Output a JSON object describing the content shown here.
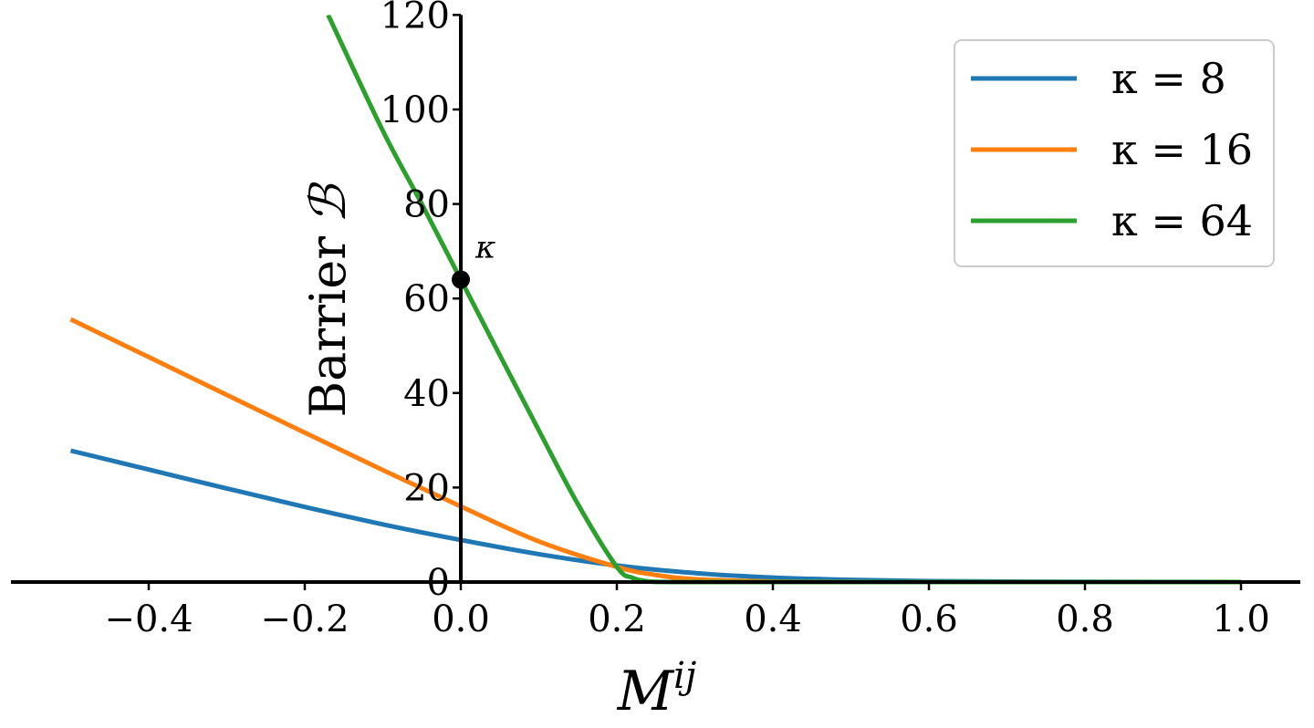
{
  "chart_data": {
    "type": "line",
    "xlabel_base": "M",
    "xlabel_sup": "ij",
    "ylabel": "Barrier",
    "ylabel_symbol": "ℬ",
    "xlim": [
      -0.5,
      1.0
    ],
    "ylim": [
      0,
      120
    ],
    "x_ticks": [
      {
        "value": -0.4,
        "label": "−0.4"
      },
      {
        "value": -0.2,
        "label": "−0.2"
      },
      {
        "value": 0.0,
        "label": "0.0"
      },
      {
        "value": 0.2,
        "label": "0.2"
      },
      {
        "value": 0.4,
        "label": "0.4"
      },
      {
        "value": 0.6,
        "label": "0.6"
      },
      {
        "value": 0.8,
        "label": "0.8"
      },
      {
        "value": 1.0,
        "label": "1.0"
      }
    ],
    "y_ticks": [
      {
        "value": 0,
        "label": "0"
      },
      {
        "value": 20,
        "label": "20"
      },
      {
        "value": 40,
        "label": "40"
      },
      {
        "value": 60,
        "label": "60"
      },
      {
        "value": 80,
        "label": "80"
      },
      {
        "value": 100,
        "label": "100"
      },
      {
        "value": 120,
        "label": "120"
      }
    ],
    "grid": false,
    "legend_position": "top-right",
    "series": [
      {
        "name": "κ = 8",
        "color": "#1f77b4",
        "x": [
          -0.5,
          -0.4,
          -0.3,
          -0.2,
          -0.1,
          0.0,
          0.1,
          0.2,
          0.3,
          0.4,
          0.5,
          0.6,
          0.7,
          0.8,
          0.9,
          1.0
        ],
        "y": [
          27.8,
          23.8,
          19.8,
          15.9,
          12.2,
          8.9,
          5.9,
          3.5,
          1.9,
          0.95,
          0.45,
          0.2,
          0.1,
          0.05,
          0.02,
          0.01
        ]
      },
      {
        "name": "κ = 16",
        "color": "#ff7f0e",
        "x": [
          -0.5,
          -0.4,
          -0.3,
          -0.2,
          -0.1,
          0.0,
          0.1,
          0.2,
          0.25,
          0.3,
          0.4,
          0.5,
          0.6,
          0.8,
          1.0
        ],
        "y": [
          55.6,
          47.6,
          39.6,
          31.6,
          23.7,
          16.0,
          8.6,
          3.2,
          1.5,
          0.6,
          0.1,
          0.02,
          0.0,
          0.0,
          0.0
        ]
      },
      {
        "name": "κ = 64",
        "color": "#2ca02c",
        "x": [
          -0.17,
          -0.1,
          -0.05,
          0.0,
          0.05,
          0.1,
          0.15,
          0.2,
          0.22,
          0.24,
          0.26,
          0.3,
          0.4,
          0.6,
          0.8,
          1.0
        ],
        "y": [
          120,
          95.5,
          80.0,
          64.0,
          48.0,
          32.1,
          16.5,
          3.2,
          0.9,
          0.15,
          0.02,
          0.0,
          0.0,
          0.0,
          0.0,
          0.0
        ]
      }
    ],
    "annotation": {
      "text": "κ",
      "x": 0.0,
      "y": 64
    }
  }
}
